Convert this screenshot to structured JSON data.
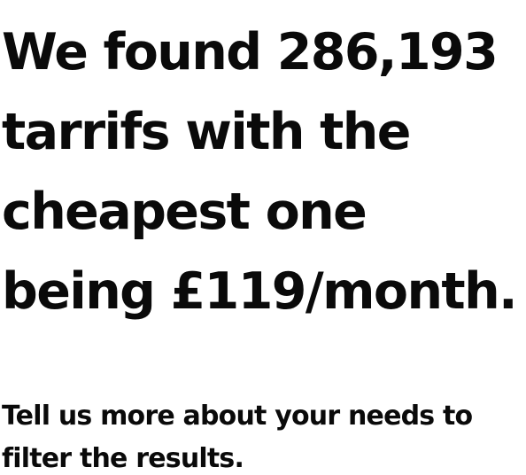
{
  "headline": {
    "lines": [
      "We found 286,193",
      "tarrifs with the",
      "cheapest one",
      "being £119/month."
    ]
  },
  "subtext": {
    "lines": [
      "Tell us more about your needs to",
      "filter the results."
    ]
  },
  "colors": {
    "text": "#0a0a0a",
    "background": "#ffffff"
  }
}
